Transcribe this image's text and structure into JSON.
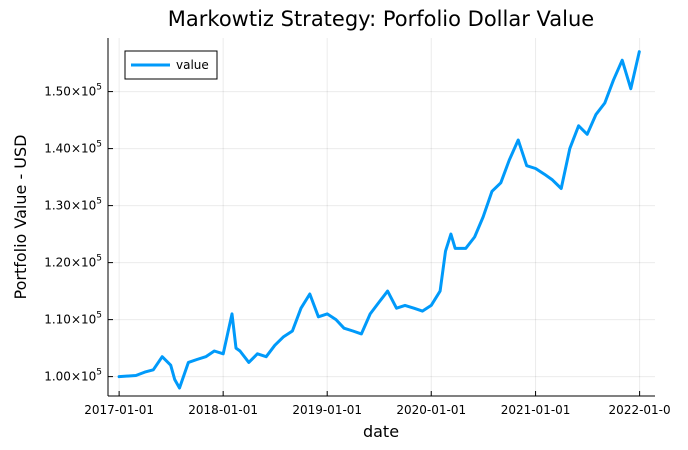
{
  "chart_data": {
    "type": "line",
    "title": "Markowtiz Strategy: Porfolio Dollar Value",
    "xlabel": "date",
    "ylabel": "Portfolio Value - USD",
    "x_ticks": [
      "2017-01-01",
      "2018-01-01",
      "2019-01-01",
      "2020-01-01",
      "2021-01-01",
      "2022-01-0"
    ],
    "y_ticks": [
      {
        "mantissa": "1.00",
        "exp": "5",
        "value": 100000
      },
      {
        "mantissa": "1.10",
        "exp": "5",
        "value": 110000
      },
      {
        "mantissa": "1.20",
        "exp": "5",
        "value": 120000
      },
      {
        "mantissa": "1.30",
        "exp": "5",
        "value": 130000
      },
      {
        "mantissa": "1.40",
        "exp": "5",
        "value": 140000
      },
      {
        "mantissa": "1.50",
        "exp": "5",
        "value": 150000
      }
    ],
    "xlim": [
      "2016-11-23",
      "2022-02-24"
    ],
    "ylim": [
      96600,
      159400
    ],
    "grid": true,
    "legend": {
      "position": "top-left",
      "entries": [
        "value"
      ]
    },
    "series": [
      {
        "name": "value",
        "color": "#009AFA",
        "x": [
          "2017-01-01",
          "2017-03-01",
          "2017-04-01",
          "2017-05-01",
          "2017-06-01",
          "2017-07-01",
          "2017-07-15",
          "2017-08-01",
          "2017-09-01",
          "2017-10-01",
          "2017-11-01",
          "2017-12-01",
          "2018-01-01",
          "2018-02-01",
          "2018-02-15",
          "2018-03-01",
          "2018-04-01",
          "2018-05-01",
          "2018-06-01",
          "2018-07-01",
          "2018-08-01",
          "2018-09-01",
          "2018-10-01",
          "2018-11-01",
          "2018-12-01",
          "2019-01-01",
          "2019-02-01",
          "2019-03-01",
          "2019-04-01",
          "2019-05-01",
          "2019-06-01",
          "2019-07-01",
          "2019-08-01",
          "2019-09-01",
          "2019-10-01",
          "2019-11-01",
          "2019-12-01",
          "2020-01-01",
          "2020-02-01",
          "2020-02-20",
          "2020-03-10",
          "2020-03-25",
          "2020-05-01",
          "2020-06-01",
          "2020-07-01",
          "2020-08-01",
          "2020-09-01",
          "2020-10-01",
          "2020-11-01",
          "2020-12-01",
          "2021-01-01",
          "2021-02-01",
          "2021-03-01",
          "2021-04-01",
          "2021-05-01",
          "2021-06-01",
          "2021-07-01",
          "2021-08-01",
          "2021-09-01",
          "2021-10-01",
          "2021-11-01",
          "2021-12-01",
          "2021-12-31"
        ],
        "values": [
          100000,
          100200,
          100800,
          101200,
          103500,
          102000,
          99500,
          98000,
          102500,
          103000,
          103500,
          104500,
          104000,
          111000,
          105000,
          104500,
          102500,
          104000,
          103500,
          105500,
          107000,
          108000,
          112000,
          114500,
          110500,
          111000,
          110000,
          108500,
          108000,
          107500,
          111000,
          113000,
          115000,
          112000,
          112500,
          112000,
          111500,
          112500,
          115000,
          122000,
          125000,
          122500,
          122500,
          124500,
          128000,
          132500,
          134000,
          138000,
          141500,
          137000,
          136500,
          135500,
          134500,
          133000,
          140000,
          144000,
          142500,
          146000,
          148000,
          152000,
          155500,
          150500,
          157000
        ]
      }
    ]
  }
}
